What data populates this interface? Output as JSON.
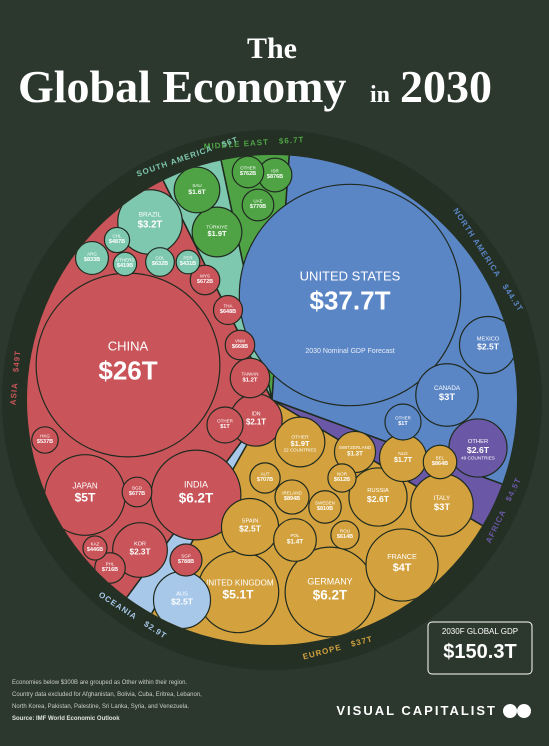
{
  "header": {
    "title_top": "The",
    "title_main": "Global Economy",
    "title_in": "in",
    "title_year": "2030"
  },
  "chart_data": {
    "type": "voronoi",
    "annotation": "2030 Nominal GDP Forecast",
    "regions": [
      {
        "name": "MIDDLE EAST",
        "value": 6700,
        "value_label": "$6.7T",
        "color": "#4fa345",
        "countries": [
          {
            "name": "SAU",
            "value": 1600,
            "value_label": "$1.6T"
          },
          {
            "name": "TÜRKIYE",
            "value": 1900,
            "value_label": "$1.9T"
          },
          {
            "name": "OTHER",
            "value": 762,
            "value_label": "$762B"
          },
          {
            "name": "ISR",
            "value": 876,
            "value_label": "$876B"
          },
          {
            "name": "UAE",
            "value": 770,
            "value_label": "$770B"
          }
        ]
      },
      {
        "name": "NORTH AMERICA",
        "value": 44300,
        "value_label": "$44.3T",
        "color": "#5b86c6",
        "countries": [
          {
            "name": "UNITED STATES",
            "value": 37700,
            "value_label": "$37.7T"
          },
          {
            "name": "CANADA",
            "value": 3000,
            "value_label": "$3T"
          },
          {
            "name": "MEXICO",
            "value": 2500,
            "value_label": "$2.5T"
          },
          {
            "name": "OTHER",
            "value": 1000,
            "value_label": "$1T"
          }
        ]
      },
      {
        "name": "AFRICA",
        "value": 4500,
        "value_label": "$4.5T",
        "color": "#6a58a6",
        "countries": [
          {
            "name": "OTHER",
            "value": 2600,
            "value_label": "$2.6T",
            "note": "49 COUNTRIES"
          }
        ]
      },
      {
        "name": "EUROPE",
        "value": 37000,
        "value_label": "$37T",
        "color": "#d3a23e",
        "countries": [
          {
            "name": "GERMANY",
            "value": 6200,
            "value_label": "$6.2T"
          },
          {
            "name": "UNITED KINGDOM",
            "value": 5100,
            "value_label": "$5.1T"
          },
          {
            "name": "FRANCE",
            "value": 4000,
            "value_label": "$4T"
          },
          {
            "name": "ITALY",
            "value": 3000,
            "value_label": "$3T"
          },
          {
            "name": "RUSSIA",
            "value": 2600,
            "value_label": "$2.6T"
          },
          {
            "name": "SPAIN",
            "value": 2500,
            "value_label": "$2.5T"
          },
          {
            "name": "NLD",
            "value": 1700,
            "value_label": "$1.7T"
          },
          {
            "name": "POL",
            "value": 1400,
            "value_label": "$1.4T"
          },
          {
            "name": "SWITZERLAND",
            "value": 1300,
            "value_label": "$1.3T"
          },
          {
            "name": "OTHER",
            "value": 1900,
            "value_label": "$1.9T",
            "note": "22 COUNTRIES"
          },
          {
            "name": "IRELAND",
            "value": 894,
            "value_label": "$894B"
          },
          {
            "name": "BEL",
            "value": 864,
            "value_label": "$864B"
          },
          {
            "name": "SWEDEN",
            "value": 810,
            "value_label": "$810B"
          },
          {
            "name": "AUT",
            "value": 707,
            "value_label": "$707B"
          },
          {
            "name": "NOR",
            "value": 612,
            "value_label": "$612B"
          },
          {
            "name": "ROU",
            "value": 614,
            "value_label": "$614B"
          }
        ]
      },
      {
        "name": "OCEANIA",
        "value": 2900,
        "value_label": "$2.9T",
        "color": "#a8c8ea",
        "countries": [
          {
            "name": "AUS",
            "value": 2500,
            "value_label": "$2.5T"
          }
        ]
      },
      {
        "name": "ASIA",
        "value": 49000,
        "value_label": "$49T",
        "color": "#c9555a",
        "countries": [
          {
            "name": "CHINA",
            "value": 26000,
            "value_label": "$26T"
          },
          {
            "name": "INDIA",
            "value": 6200,
            "value_label": "$6.2T"
          },
          {
            "name": "JAPAN",
            "value": 5000,
            "value_label": "$5T"
          },
          {
            "name": "KOR",
            "value": 2300,
            "value_label": "$2.3T"
          },
          {
            "name": "IDN",
            "value": 2100,
            "value_label": "$2.1T"
          },
          {
            "name": "TAIWAN",
            "value": 1200,
            "value_label": "$1.2T"
          },
          {
            "name": "OTHER",
            "value": 1000,
            "value_label": "$1T"
          },
          {
            "name": "SGP",
            "value": 788,
            "value_label": "$788B"
          },
          {
            "name": "PHL",
            "value": 716,
            "value_label": "$716B"
          },
          {
            "name": "BGD",
            "value": 677,
            "value_label": "$677B"
          },
          {
            "name": "VNM",
            "value": 668,
            "value_label": "$668B"
          },
          {
            "name": "MYS",
            "value": 672,
            "value_label": "$672B"
          },
          {
            "name": "THA",
            "value": 648,
            "value_label": "$648B"
          },
          {
            "name": "HKG",
            "value": 537,
            "value_label": "$537B"
          },
          {
            "name": "KAZ",
            "value": 446,
            "value_label": "$446B"
          }
        ]
      },
      {
        "name": "SOUTH AMERICA",
        "value": 6000,
        "value_label": "$6T",
        "color": "#7fc8b0",
        "countries": [
          {
            "name": "BRAZIL",
            "value": 3200,
            "value_label": "$3.2T"
          },
          {
            "name": "ARG",
            "value": 833,
            "value_label": "$833B"
          },
          {
            "name": "CHL",
            "value": 487,
            "value_label": "$487B"
          },
          {
            "name": "COL",
            "value": 632,
            "value_label": "$632B"
          },
          {
            "name": "PER",
            "value": 431,
            "value_label": "$431B"
          },
          {
            "name": "OTHERS",
            "value": 419,
            "value_label": "$419B"
          }
        ]
      }
    ],
    "total": {
      "label": "2030F GLOBAL GDP",
      "value": 150300,
      "value_label": "$150.3T"
    }
  },
  "footer": {
    "notes": [
      "Economies below $300B are grouped as Other within their region.",
      "Country data excluded for Afghanistan, Bolivia, Cuba, Eritrea, Lebanon,",
      "North Korea, Pakistan, Palestine, Sri Lanka, Syria, and Venezuela."
    ],
    "source": "Source: IMF World Economic Outlook",
    "brand": "VISUAL CAPITALIST"
  }
}
